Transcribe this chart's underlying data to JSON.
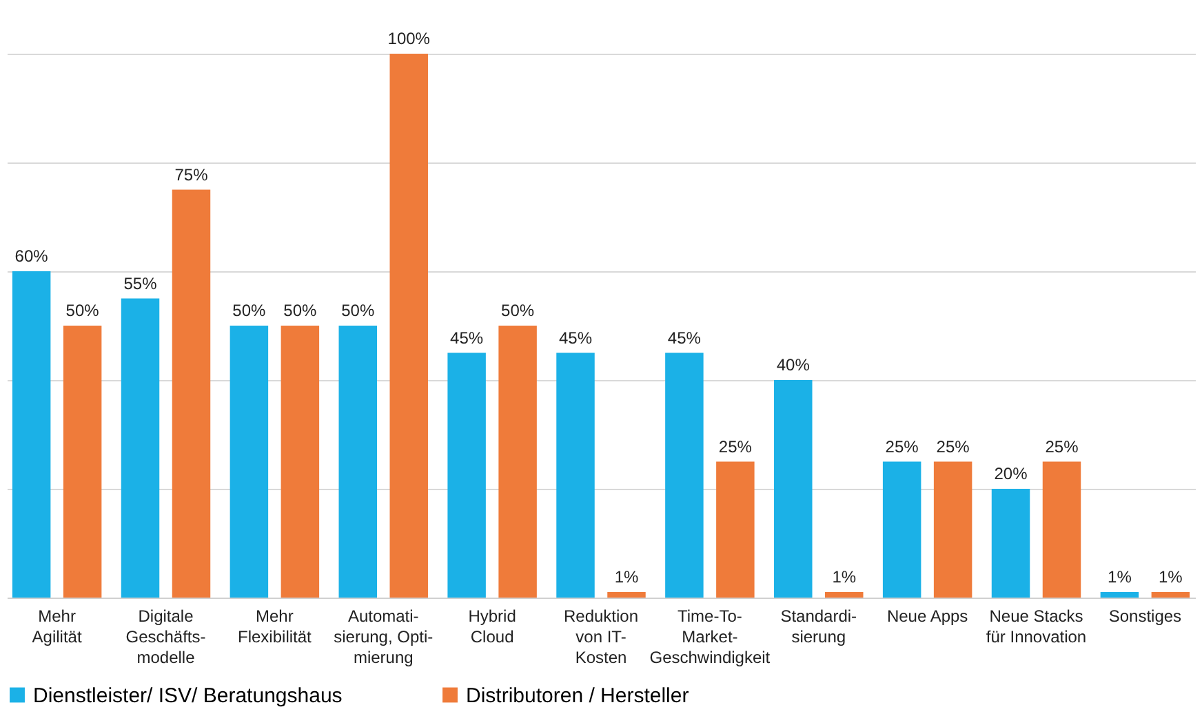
{
  "chart_data": {
    "type": "bar",
    "categories": [
      "Mehr\nAgilität",
      "Digitale\nGeschäfts-\nmodelle",
      "Mehr\nFlexibilität",
      "Automati-\nsierung, Opti-\nmierung",
      "Hybrid\nCloud",
      "Reduktion\nvon IT-\nKosten",
      "Time-To-\nMarket-\nGeschwindigkeit",
      "Standardi-\nsierung",
      "Neue Apps",
      "Neue Stacks\nfür Innovation",
      "Sonstiges"
    ],
    "series": [
      {
        "name": "Dienstleister/ ISV/ Beratungshaus",
        "color": "#1bb1e7",
        "values": [
          60,
          55,
          50,
          50,
          45,
          45,
          45,
          40,
          25,
          20,
          1
        ],
        "value_labels": [
          "60%",
          "55%",
          "50%",
          "50%",
          "45%",
          "45%",
          "45%",
          "40%",
          "25%",
          "20%",
          "1%"
        ]
      },
      {
        "name": "Distributoren / Hersteller",
        "color": "#ef7b3a",
        "values": [
          50,
          75,
          50,
          100,
          50,
          1,
          25,
          1,
          25,
          25,
          1
        ],
        "value_labels": [
          "50%",
          "75%",
          "50%",
          "100%",
          "50%",
          "1%",
          "25%",
          "1%",
          "25%",
          "25%",
          "1%"
        ]
      }
    ],
    "ylim": [
      0,
      100
    ],
    "yticks": [
      {
        "value": 0,
        "label": null
      },
      {
        "value": 20,
        "label": null
      },
      {
        "value": 40,
        "label": null
      },
      {
        "value": 60,
        "label": null
      },
      {
        "value": 80,
        "label": null
      },
      {
        "value": 100,
        "label": null
      }
    ],
    "tick_labels": "x",
    "grid": "y",
    "legend": "bottom"
  }
}
